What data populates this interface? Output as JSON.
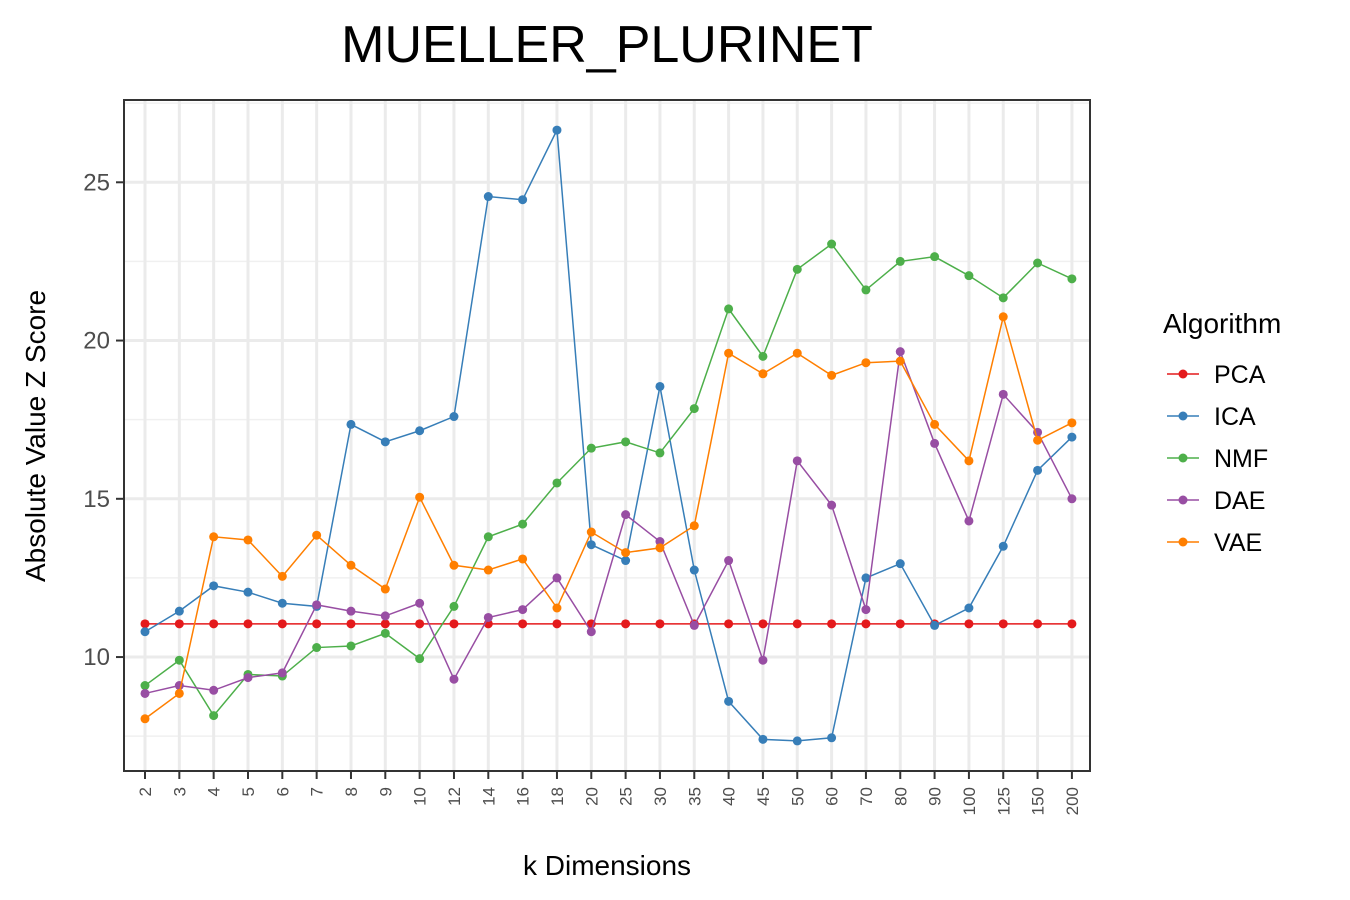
{
  "chart_data": {
    "type": "line",
    "title": "MUELLER_PLURINET",
    "xlabel": "k Dimensions",
    "ylabel": "Absolute Value Z Score",
    "ylim": [
      6.4,
      27.6
    ],
    "yticks": [
      10,
      15,
      20,
      25
    ],
    "categories": [
      "2",
      "3",
      "4",
      "5",
      "6",
      "7",
      "8",
      "9",
      "10",
      "12",
      "14",
      "16",
      "18",
      "20",
      "25",
      "30",
      "35",
      "40",
      "45",
      "50",
      "60",
      "70",
      "80",
      "90",
      "100",
      "125",
      "150",
      "200"
    ],
    "legend_title": "Algorithm",
    "legend_position": "right",
    "grid": true,
    "series": [
      {
        "name": "PCA",
        "color": "#e41a1c",
        "values": [
          11.05,
          11.05,
          11.05,
          11.05,
          11.05,
          11.05,
          11.05,
          11.05,
          11.05,
          11.05,
          11.05,
          11.05,
          11.05,
          11.05,
          11.05,
          11.05,
          11.05,
          11.05,
          11.05,
          11.05,
          11.05,
          11.05,
          11.05,
          11.05,
          11.05,
          11.05,
          11.05,
          11.05
        ]
      },
      {
        "name": "ICA",
        "color": "#377eb8",
        "values": [
          10.8,
          11.45,
          12.25,
          12.05,
          11.7,
          11.6,
          17.35,
          16.8,
          17.15,
          17.6,
          24.55,
          24.45,
          26.65,
          13.55,
          13.05,
          18.55,
          12.75,
          8.6,
          7.4,
          7.35,
          7.45,
          12.5,
          12.95,
          11.0,
          11.55,
          13.5,
          15.9,
          16.95
        ]
      },
      {
        "name": "NMF",
        "color": "#4daf4a",
        "values": [
          9.1,
          9.9,
          8.15,
          9.45,
          9.4,
          10.3,
          10.35,
          10.75,
          9.95,
          11.6,
          13.8,
          14.2,
          15.5,
          16.6,
          16.8,
          16.45,
          17.85,
          21.0,
          19.5,
          22.25,
          23.05,
          21.6,
          22.5,
          22.65,
          22.05,
          21.35,
          22.45,
          21.95
        ]
      },
      {
        "name": "DAE",
        "color": "#984ea3",
        "values": [
          8.85,
          9.1,
          8.95,
          9.35,
          9.5,
          11.65,
          11.45,
          11.3,
          11.7,
          9.3,
          11.25,
          11.5,
          12.5,
          10.8,
          14.5,
          13.65,
          11.0,
          13.05,
          9.9,
          16.2,
          14.8,
          11.5,
          19.65,
          16.75,
          14.3,
          18.3,
          17.1,
          15.0
        ]
      },
      {
        "name": "VAE",
        "color": "#ff7f00",
        "values": [
          8.05,
          8.85,
          13.8,
          13.7,
          12.55,
          13.85,
          12.9,
          12.15,
          15.05,
          12.9,
          12.75,
          13.1,
          11.55,
          13.95,
          13.3,
          13.45,
          14.15,
          19.6,
          18.95,
          19.6,
          18.9,
          19.3,
          19.35,
          17.35,
          16.2,
          20.75,
          16.85,
          17.4
        ]
      }
    ]
  }
}
